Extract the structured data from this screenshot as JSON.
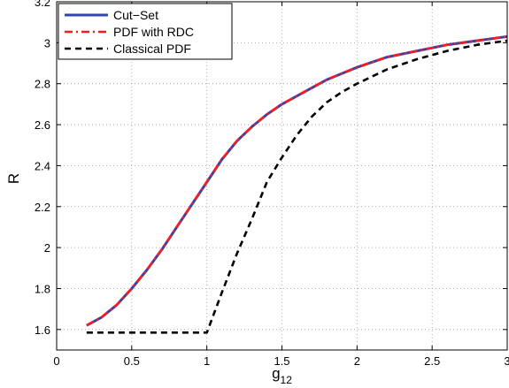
{
  "chart_data": {
    "type": "line",
    "title": "",
    "xlabel": "g",
    "xlabel_subscript": "12",
    "ylabel": "R",
    "xlim": [
      0,
      3
    ],
    "ylim": [
      1.5,
      3.2
    ],
    "x_ticks": [
      0,
      0.5,
      1,
      1.5,
      2,
      2.5,
      3
    ],
    "x_tick_labels": [
      "0",
      "0.5",
      "1",
      "1.5",
      "2",
      "2.5",
      "3"
    ],
    "y_ticks": [
      1.6,
      1.8,
      2.0,
      2.2,
      2.4,
      2.6,
      2.8,
      3.0,
      3.2
    ],
    "y_tick_labels": [
      "1.6",
      "1.8",
      "2",
      "2.2",
      "2.4",
      "2.6",
      "2.8",
      "3",
      "3.2"
    ],
    "grid": true,
    "legend_position": "top-left",
    "series": [
      {
        "name": "Cut−Set",
        "color": "#3344aa",
        "style": "solid",
        "x": [
          0.2,
          0.3,
          0.4,
          0.5,
          0.6,
          0.7,
          0.8,
          0.9,
          1.0,
          1.1,
          1.2,
          1.3,
          1.4,
          1.5,
          1.6,
          1.7,
          1.8,
          1.9,
          2.0,
          2.2,
          2.4,
          2.6,
          2.8,
          3.0
        ],
        "y": [
          1.62,
          1.66,
          1.72,
          1.8,
          1.89,
          1.99,
          2.1,
          2.21,
          2.32,
          2.43,
          2.52,
          2.59,
          2.65,
          2.7,
          2.74,
          2.78,
          2.82,
          2.85,
          2.88,
          2.93,
          2.96,
          2.99,
          3.01,
          3.03
        ]
      },
      {
        "name": "PDF with RDC",
        "color": "#ff1a1a",
        "style": "dashdot",
        "x": [
          0.2,
          0.3,
          0.4,
          0.5,
          0.6,
          0.7,
          0.8,
          0.9,
          1.0,
          1.1,
          1.2,
          1.3,
          1.4,
          1.5,
          1.6,
          1.7,
          1.8,
          1.9,
          2.0,
          2.2,
          2.4,
          2.6,
          2.8,
          3.0
        ],
        "y": [
          1.62,
          1.66,
          1.72,
          1.8,
          1.89,
          1.99,
          2.1,
          2.21,
          2.32,
          2.43,
          2.52,
          2.59,
          2.65,
          2.7,
          2.74,
          2.78,
          2.82,
          2.85,
          2.88,
          2.93,
          2.96,
          2.99,
          3.01,
          3.03
        ]
      },
      {
        "name": "Classical PDF",
        "color": "#000000",
        "style": "dashed",
        "x": [
          0.2,
          0.5,
          1.0,
          1.1,
          1.2,
          1.3,
          1.4,
          1.5,
          1.6,
          1.7,
          1.8,
          1.9,
          2.0,
          2.2,
          2.4,
          2.6,
          2.8,
          3.0
        ],
        "y": [
          1.585,
          1.585,
          1.585,
          1.78,
          1.97,
          2.14,
          2.32,
          2.44,
          2.55,
          2.64,
          2.71,
          2.76,
          2.8,
          2.87,
          2.92,
          2.96,
          2.99,
          3.01
        ]
      }
    ]
  }
}
